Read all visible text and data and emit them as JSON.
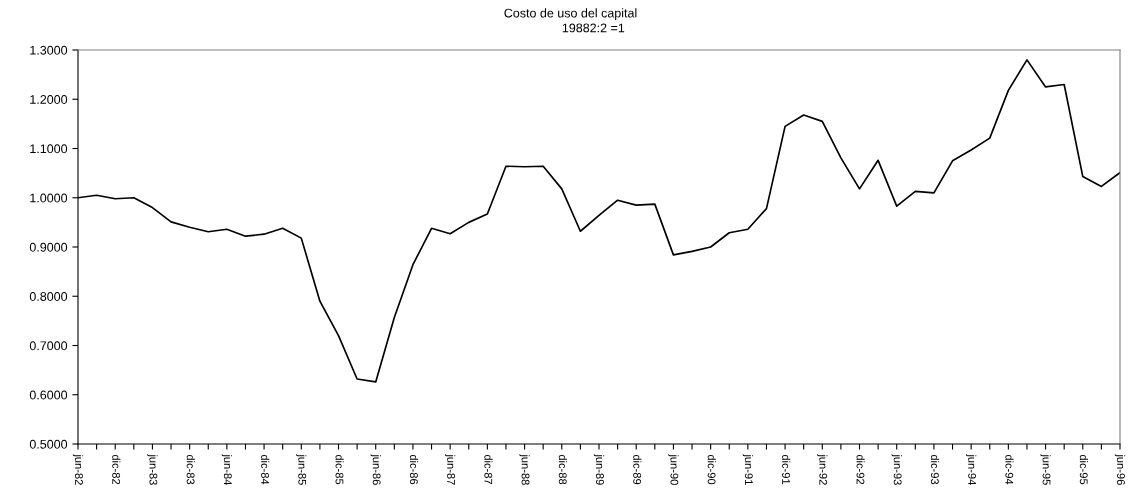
{
  "chart_data": {
    "type": "line",
    "title": "Costo de uso del capital",
    "subtitle": "19882:2 =1",
    "categories": [
      "jun-82",
      null,
      "dic-82",
      null,
      "jun-83",
      null,
      "dic-83",
      null,
      "jun-84",
      null,
      "dic-84",
      null,
      "jun-85",
      null,
      "dic-85",
      null,
      "jun-86",
      null,
      "dic-86",
      null,
      "jun-87",
      null,
      "dic-87",
      null,
      "jun-88",
      null,
      "dic-88",
      null,
      "jun-89",
      null,
      "dic-89",
      null,
      "jun-90",
      null,
      "dic-90",
      null,
      "jun-91",
      null,
      "dic-91",
      null,
      "jun-92",
      null,
      "dic-92",
      null,
      "jun-93",
      null,
      "dic-93",
      null,
      "jun-94",
      null,
      "dic-94",
      null,
      "jun-95",
      null,
      "dic-95",
      null,
      "jun-96"
    ],
    "series": [
      {
        "color": "#000000",
        "values": [
          1.0,
          1.005,
          0.998,
          1.0,
          0.98,
          0.951,
          0.94,
          0.931,
          0.936,
          0.922,
          0.926,
          0.938,
          0.918,
          0.79,
          0.72,
          0.632,
          0.626,
          0.757,
          0.864,
          0.938,
          0.927,
          0.95,
          0.967,
          1.064,
          1.063,
          1.064,
          1.018,
          0.932,
          0.964,
          0.995,
          0.985,
          0.987,
          0.884,
          0.891,
          0.9,
          0.929,
          0.936,
          0.978,
          1.145,
          1.168,
          1.155,
          1.081,
          1.018,
          1.076,
          0.983,
          1.013,
          1.01,
          1.075,
          1.097,
          1.121,
          1.218,
          1.28,
          1.225,
          1.23,
          1.043,
          1.023,
          1.051
        ]
      }
    ],
    "ylim": [
      0.5,
      1.3
    ],
    "yticks": [
      {
        "value": 0.5,
        "label": "0.5000"
      },
      {
        "value": 0.6,
        "label": "0.6000"
      },
      {
        "value": 0.7,
        "label": "0.7000"
      },
      {
        "value": 0.8,
        "label": "0.8000"
      },
      {
        "value": 0.9,
        "label": "0.9000"
      },
      {
        "value": 1.0,
        "label": "1.0000"
      },
      {
        "value": 1.1,
        "label": "1.1000"
      },
      {
        "value": 1.2,
        "label": "1.2000"
      },
      {
        "value": 1.3,
        "label": "1.3000"
      }
    ],
    "grid": false,
    "legend": false,
    "marker": "none",
    "line_style": "solid"
  }
}
